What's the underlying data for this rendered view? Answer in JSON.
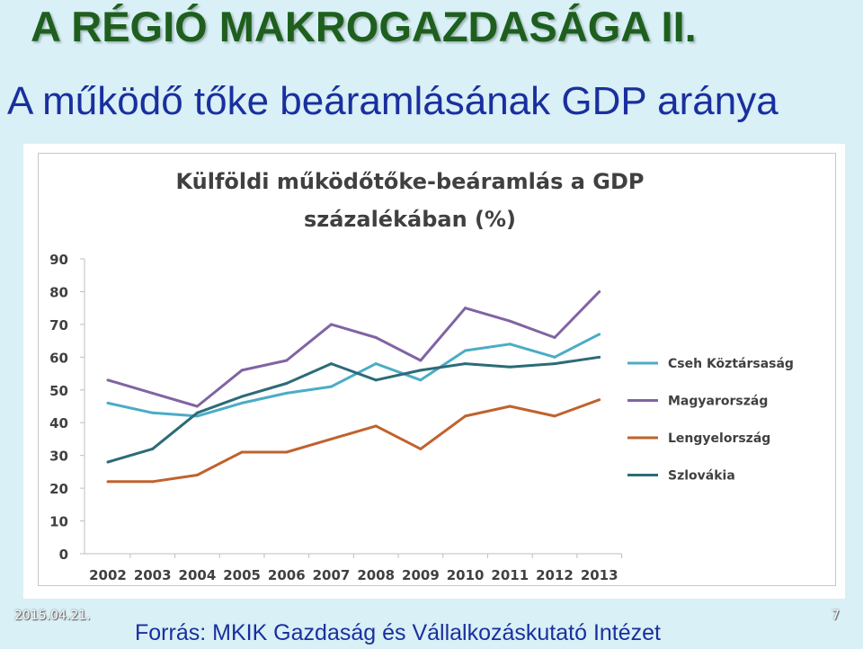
{
  "slide": {
    "title": "A RÉGIÓ MAKROGAZDASÁGA  II.",
    "subtitle": "A működő tőke beáramlásának GDP aránya",
    "date": "2015.04.21.",
    "page_number": "7",
    "source": "Forrás: MKIK Gazdaság és Vállalkozáskutató Intézet"
  },
  "chart_data": {
    "type": "line",
    "title_line1": "Külföldi működőtőke-beáramlás a GDP",
    "title_line2": "százalékában (%)",
    "xlabel": "",
    "ylabel": "",
    "ylim": [
      0,
      90
    ],
    "yticks": [
      0,
      10,
      20,
      30,
      40,
      50,
      60,
      70,
      80,
      90
    ],
    "grid": false,
    "legend_position": "right",
    "categories": [
      "2002",
      "2003",
      "2004",
      "2005",
      "2006",
      "2007",
      "2008",
      "2009",
      "2010",
      "2011",
      "2012",
      "2013"
    ],
    "series": [
      {
        "name": "Cseh Köztársaság",
        "color": "#4bacc6",
        "values": [
          46,
          43,
          42,
          46,
          49,
          51,
          58,
          53,
          62,
          64,
          60,
          67
        ]
      },
      {
        "name": "Magyarország",
        "color": "#8064a2",
        "values": [
          53,
          49,
          45,
          56,
          59,
          70,
          66,
          59,
          75,
          71,
          66,
          80
        ]
      },
      {
        "name": "Lengyelország",
        "color": "#c0622d",
        "values": [
          22,
          22,
          24,
          31,
          31,
          35,
          39,
          32,
          42,
          45,
          42,
          47
        ]
      },
      {
        "name": "Szlovákia",
        "color": "#2c6b78",
        "values": [
          28,
          32,
          43,
          48,
          52,
          58,
          53,
          56,
          58,
          57,
          58,
          60
        ]
      }
    ]
  }
}
